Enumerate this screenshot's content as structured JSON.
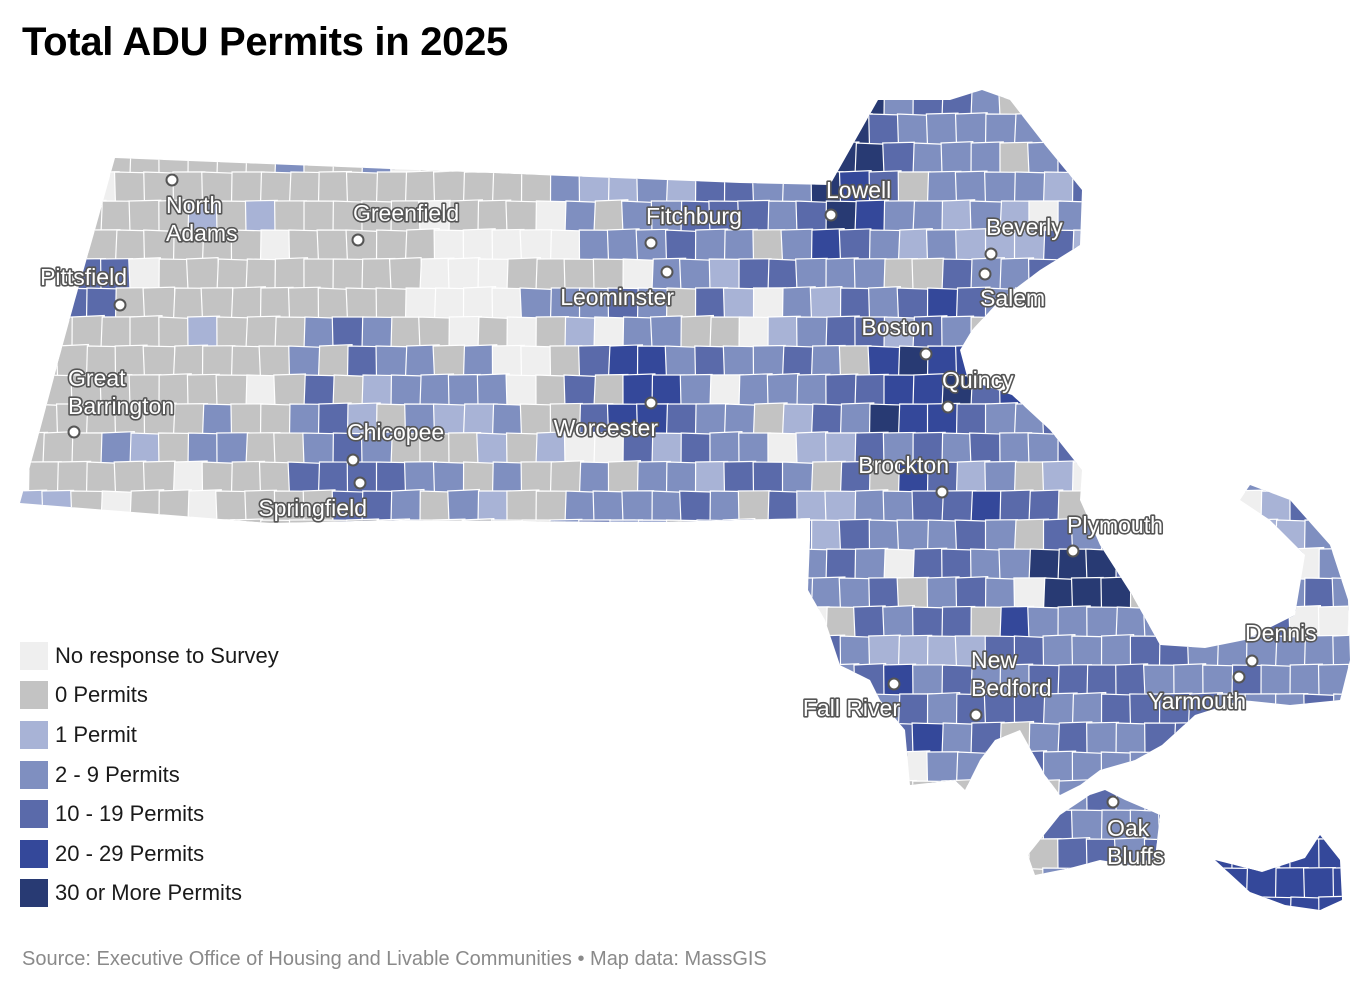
{
  "title": "Total ADU Permits in 2025",
  "legend": [
    {
      "label": "No response to Survey",
      "color": "#efefef"
    },
    {
      "label": "0 Permits",
      "color": "#c3c3c3"
    },
    {
      "label": "1 Permit",
      "color": "#a8b3d6"
    },
    {
      "label": "2 - 9 Permits",
      "color": "#7f8fc0"
    },
    {
      "label": "10 - 19 Permits",
      "color": "#5a6aaa"
    },
    {
      "label": "20 - 29 Permits",
      "color": "#34489a"
    },
    {
      "label": "30 or More Permits",
      "color": "#283a73"
    }
  ],
  "cities": [
    {
      "name": "North Adams",
      "lines": [
        "North",
        "Adams"
      ]
    },
    {
      "name": "Greenfield",
      "lines": [
        "Greenfield"
      ]
    },
    {
      "name": "Fitchburg",
      "lines": [
        "Fitchburg"
      ]
    },
    {
      "name": "Lowell",
      "lines": [
        "Lowell"
      ]
    },
    {
      "name": "Beverly",
      "lines": [
        "Beverly"
      ]
    },
    {
      "name": "Salem",
      "lines": [
        "Salem"
      ]
    },
    {
      "name": "Pittsfield",
      "lines": [
        "Pittsfield"
      ]
    },
    {
      "name": "Leominster",
      "lines": [
        "Leominster"
      ]
    },
    {
      "name": "Boston",
      "lines": [
        "Boston"
      ]
    },
    {
      "name": "Quincy",
      "lines": [
        "Quincy"
      ]
    },
    {
      "name": "Great Barrington",
      "lines": [
        "Great",
        "Barrington"
      ]
    },
    {
      "name": "Worcester",
      "lines": [
        "Worcester"
      ]
    },
    {
      "name": "Chicopee",
      "lines": [
        "Chicopee"
      ]
    },
    {
      "name": "Springfield",
      "lines": [
        "Springfield"
      ]
    },
    {
      "name": "Brockton",
      "lines": [
        "Brockton"
      ]
    },
    {
      "name": "Plymouth",
      "lines": [
        "Plymouth"
      ]
    },
    {
      "name": "Dennis",
      "lines": [
        "Dennis"
      ]
    },
    {
      "name": "New Bedford",
      "lines": [
        "New",
        "Bedford"
      ]
    },
    {
      "name": "Fall River",
      "lines": [
        "Fall River"
      ]
    },
    {
      "name": "Yarmouth",
      "lines": [
        "Yarmouth"
      ]
    },
    {
      "name": "Oak Bluffs",
      "lines": [
        "Oak",
        "Bluffs"
      ]
    }
  ],
  "source": "Source: Executive Office of Housing and Livable Communities • Map data: MassGIS"
}
